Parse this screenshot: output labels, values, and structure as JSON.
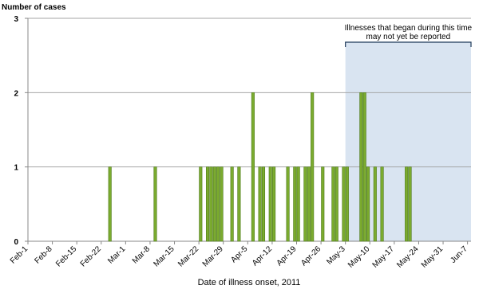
{
  "chart_data": {
    "type": "bar",
    "y_label": "Number of cases",
    "x_label": "Date of illness onset, 2011",
    "annotation": [
      "Illnesses that began during this time",
      "may not yet be reported"
    ],
    "shade_x": [
      "2011-05-03",
      "2011-06-08"
    ],
    "shade_color": "#d9e4f1",
    "x": [
      "2011-02-24",
      "2011-03-09",
      "2011-03-22",
      "2011-03-24",
      "2011-03-25",
      "2011-03-26",
      "2011-03-27",
      "2011-03-28",
      "2011-03-31",
      "2011-04-02",
      "2011-04-06",
      "2011-04-08",
      "2011-04-09",
      "2011-04-11",
      "2011-04-12",
      "2011-04-16",
      "2011-04-18",
      "2011-04-19",
      "2011-04-21",
      "2011-04-22",
      "2011-04-23",
      "2011-04-26",
      "2011-04-29",
      "2011-04-30",
      "2011-05-02",
      "2011-05-03",
      "2011-05-07",
      "2011-05-08",
      "2011-05-09",
      "2011-05-11",
      "2011-05-13",
      "2011-05-20",
      "2011-05-21"
    ],
    "values": [
      1,
      1,
      1,
      1,
      1,
      1,
      1,
      1,
      1,
      1,
      2,
      1,
      1,
      1,
      1,
      1,
      1,
      1,
      1,
      1,
      2,
      1,
      1,
      1,
      1,
      1,
      2,
      2,
      1,
      1,
      1,
      1,
      1
    ],
    "color": "#7bab2f",
    "edge": "#4d7a19",
    "xlim": [
      "2011-02-01",
      "2011-06-08"
    ],
    "xticks": [
      {
        "value": "2011-02-01",
        "label": "Feb-1"
      },
      {
        "value": "2011-02-08",
        "label": "Feb-8"
      },
      {
        "value": "2011-02-15",
        "label": "Feb-15"
      },
      {
        "value": "2011-02-22",
        "label": "Feb-22"
      },
      {
        "value": "2011-03-01",
        "label": "Mar-1"
      },
      {
        "value": "2011-03-08",
        "label": "Mar-8"
      },
      {
        "value": "2011-03-15",
        "label": "Mar-15"
      },
      {
        "value": "2011-03-22",
        "label": "Mar-22"
      },
      {
        "value": "2011-03-29",
        "label": "Mar-29"
      },
      {
        "value": "2011-04-05",
        "label": "Apr-5"
      },
      {
        "value": "2011-04-12",
        "label": "Apr-12"
      },
      {
        "value": "2011-04-19",
        "label": "Apr-19"
      },
      {
        "value": "2011-04-26",
        "label": "Apr-26"
      },
      {
        "value": "2011-05-03",
        "label": "May-3"
      },
      {
        "value": "2011-05-10",
        "label": "May-10"
      },
      {
        "value": "2011-05-17",
        "label": "May-17"
      },
      {
        "value": "2011-05-24",
        "label": "May-24"
      },
      {
        "value": "2011-05-31",
        "label": "May-31"
      },
      {
        "value": "2011-06-07",
        "label": "Jun-7"
      }
    ],
    "ylim": [
      0,
      3
    ],
    "yticks": [
      0,
      1,
      2,
      3
    ],
    "grid": true
  }
}
